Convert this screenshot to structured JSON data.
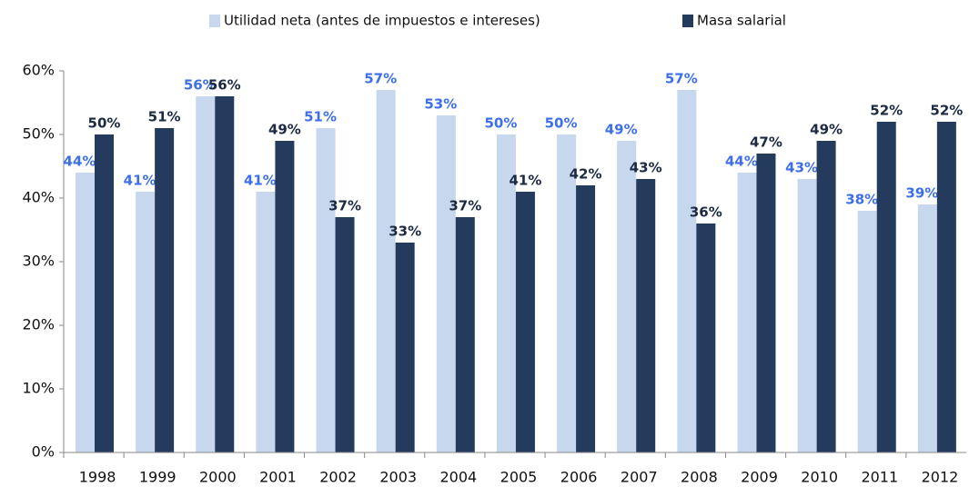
{
  "chart_data": {
    "type": "bar",
    "categories": [
      "1998",
      "1999",
      "2000",
      "2001",
      "2002",
      "2003",
      "2004",
      "2005",
      "2006",
      "2007",
      "2008",
      "2009",
      "2010",
      "2011",
      "2012"
    ],
    "series": [
      {
        "name": "Utilidad neta (antes de impuestos e intereses)",
        "color": "#c6d7ee",
        "label_color": "#3d6fe8",
        "values": [
          44,
          41,
          56,
          41,
          51,
          57,
          53,
          50,
          50,
          49,
          57,
          44,
          43,
          38,
          39
        ],
        "value_labels": [
          "44%",
          "41%",
          "56%",
          "41%",
          "51%",
          "57%",
          "53%",
          "50%",
          "50%",
          "49%",
          "57%",
          "44%",
          "43%",
          "38%",
          "39%"
        ]
      },
      {
        "name": "Masa salarial",
        "color": "#243b5e",
        "label_color": "#1b2942",
        "values": [
          50,
          51,
          56,
          49,
          37,
          33,
          37,
          41,
          42,
          43,
          36,
          47,
          49,
          52,
          52
        ],
        "value_labels": [
          "50%",
          "51%",
          "56%",
          "49%",
          "37%",
          "33%",
          "37%",
          "41%",
          "42%",
          "43%",
          "36%",
          "47%",
          "49%",
          "52%",
          "52%"
        ]
      }
    ],
    "ylim": [
      0,
      60
    ],
    "yticks": [
      {
        "value": 0,
        "label": "0%"
      },
      {
        "value": 10,
        "label": "10%"
      },
      {
        "value": 20,
        "label": "20%"
      },
      {
        "value": 30,
        "label": "30%"
      },
      {
        "value": 40,
        "label": "40%"
      },
      {
        "value": 50,
        "label": "50%"
      },
      {
        "value": 60,
        "label": "60%"
      }
    ],
    "legend": "top"
  }
}
